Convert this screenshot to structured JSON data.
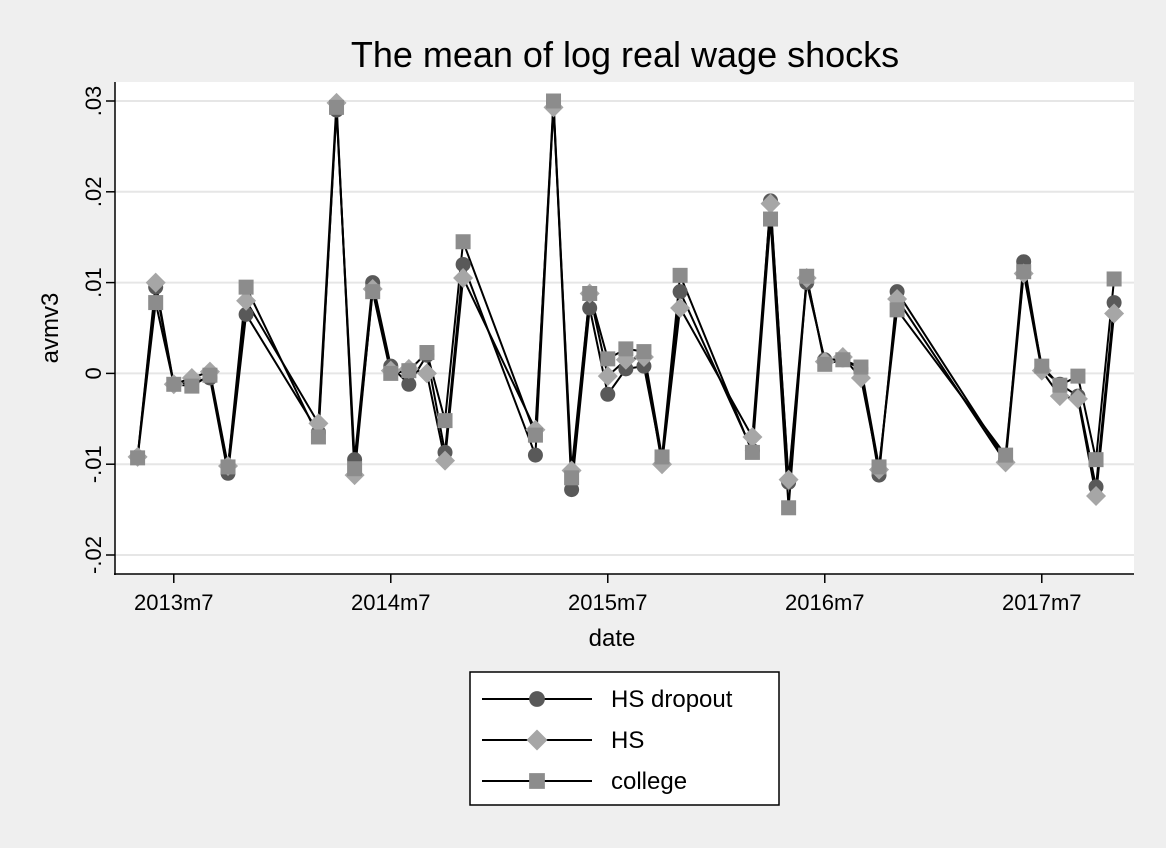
{
  "chart_data": {
    "type": "line",
    "title": "The mean of log real wage shocks",
    "xlabel": "date",
    "ylabel": "avmv3",
    "ylim": [
      -0.02,
      0.03
    ],
    "y_ticks": [
      {
        "value": -0.02,
        "label": "-.02"
      },
      {
        "value": -0.01,
        "label": "-.01"
      },
      {
        "value": 0,
        "label": "0"
      },
      {
        "value": 0.01,
        "label": ".01"
      },
      {
        "value": 0.02,
        "label": ".02"
      },
      {
        "value": 0.03,
        "label": ".03"
      }
    ],
    "xlim": [
      "2013m4",
      "2017m12"
    ],
    "x_ticks": [
      "2013m7",
      "2014m7",
      "2015m7",
      "2016m7",
      "2017m7"
    ],
    "grid": true,
    "legend_position": "bottom",
    "colors": {
      "background": "#efefef",
      "plot_background": "#ffffff",
      "line": "#000000",
      "dropout_marker": "#595959",
      "hs_marker": "#a6a6a6",
      "college_marker": "#8c8c8c",
      "gridline": "#e6e6e6"
    },
    "series": [
      {
        "name": "HS dropout",
        "marker": "circle",
        "points": [
          [
            "2013m5",
            -0.0092
          ],
          [
            "2013m6",
            0.0095
          ],
          [
            "2013m7",
            -0.0012
          ],
          [
            "2013m8",
            -0.001
          ],
          [
            "2013m9",
            -0.0005
          ],
          [
            "2013m10",
            -0.011
          ],
          [
            "2013m11",
            0.0065
          ],
          [
            "2014m3",
            -0.0065
          ],
          [
            "2014m4",
            0.029
          ],
          [
            "2014m5",
            -0.0095
          ],
          [
            "2014m6",
            0.01
          ],
          [
            "2014m7",
            0.0008
          ],
          [
            "2014m8",
            -0.0012
          ],
          [
            "2014m9",
            0.002
          ],
          [
            "2014m10",
            -0.0087
          ],
          [
            "2014m11",
            0.012
          ],
          [
            "2015m3",
            -0.009
          ],
          [
            "2015m4",
            0.0298
          ],
          [
            "2015m5",
            -0.0128
          ],
          [
            "2015m6",
            0.0072
          ],
          [
            "2015m7",
            -0.0023
          ],
          [
            "2015m8",
            0.0005
          ],
          [
            "2015m9",
            0.0008
          ],
          [
            "2015m10",
            -0.0095
          ],
          [
            "2015m11",
            0.009
          ],
          [
            "2016m3",
            -0.0085
          ],
          [
            "2016m4",
            0.019
          ],
          [
            "2016m5",
            -0.012
          ],
          [
            "2016m6",
            0.01
          ],
          [
            "2016m7",
            0.0015
          ],
          [
            "2016m8",
            0.0015
          ],
          [
            "2016m9",
            0.0005
          ],
          [
            "2016m10",
            -0.0112
          ],
          [
            "2016m11",
            0.009
          ],
          [
            "2017m5",
            -0.0095
          ],
          [
            "2017m6",
            0.0123
          ],
          [
            "2017m7",
            0.0005
          ],
          [
            "2017m8",
            -0.0012
          ],
          [
            "2017m9",
            -0.0025
          ],
          [
            "2017m10",
            -0.0125
          ],
          [
            "2017m11",
            0.0078
          ]
        ]
      },
      {
        "name": "HS",
        "marker": "diamond",
        "points": [
          [
            "2013m5",
            -0.0092
          ],
          [
            "2013m6",
            0.01
          ],
          [
            "2013m7",
            -0.0012
          ],
          [
            "2013m8",
            -0.0005
          ],
          [
            "2013m9",
            0.0002
          ],
          [
            "2013m10",
            -0.0102
          ],
          [
            "2013m11",
            0.008
          ],
          [
            "2014m3",
            -0.0055
          ],
          [
            "2014m4",
            0.0298
          ],
          [
            "2014m5",
            -0.0112
          ],
          [
            "2014m6",
            0.0093
          ],
          [
            "2014m7",
            0.0003
          ],
          [
            "2014m8",
            0.0005
          ],
          [
            "2014m9",
            0.0
          ],
          [
            "2014m10",
            -0.0096
          ],
          [
            "2014m11",
            0.0105
          ],
          [
            "2015m3",
            -0.0062
          ],
          [
            "2015m4",
            0.0293
          ],
          [
            "2015m5",
            -0.0107
          ],
          [
            "2015m6",
            0.0088
          ],
          [
            "2015m7",
            -0.0003
          ],
          [
            "2015m8",
            0.0015
          ],
          [
            "2015m9",
            0.0018
          ],
          [
            "2015m10",
            -0.01
          ],
          [
            "2015m11",
            0.0072
          ],
          [
            "2016m3",
            -0.007
          ],
          [
            "2016m4",
            0.0187
          ],
          [
            "2016m5",
            -0.0117
          ],
          [
            "2016m6",
            0.0105
          ],
          [
            "2016m7",
            0.0013
          ],
          [
            "2016m8",
            0.0018
          ],
          [
            "2016m9",
            -0.0005
          ],
          [
            "2016m10",
            -0.0106
          ],
          [
            "2016m11",
            0.0082
          ],
          [
            "2017m5",
            -0.0098
          ],
          [
            "2017m6",
            0.011
          ],
          [
            "2017m7",
            0.0003
          ],
          [
            "2017m8",
            -0.0025
          ],
          [
            "2017m9",
            -0.0028
          ],
          [
            "2017m10",
            -0.0135
          ],
          [
            "2017m11",
            0.0066
          ]
        ]
      },
      {
        "name": "college",
        "marker": "square",
        "points": [
          [
            "2013m5",
            -0.0093
          ],
          [
            "2013m6",
            0.0078
          ],
          [
            "2013m7",
            -0.0012
          ],
          [
            "2013m8",
            -0.0014
          ],
          [
            "2013m9",
            -0.0002
          ],
          [
            "2013m10",
            -0.0103
          ],
          [
            "2013m11",
            0.0095
          ],
          [
            "2014m3",
            -0.007
          ],
          [
            "2014m4",
            0.0293
          ],
          [
            "2014m5",
            -0.0105
          ],
          [
            "2014m6",
            0.009
          ],
          [
            "2014m7",
            0.0
          ],
          [
            "2014m8",
            0.0003
          ],
          [
            "2014m9",
            0.0023
          ],
          [
            "2014m10",
            -0.0052
          ],
          [
            "2014m11",
            0.0145
          ],
          [
            "2015m3",
            -0.0068
          ],
          [
            "2015m4",
            0.03
          ],
          [
            "2015m5",
            -0.0115
          ],
          [
            "2015m6",
            0.0088
          ],
          [
            "2015m7",
            0.0016
          ],
          [
            "2015m8",
            0.0027
          ],
          [
            "2015m9",
            0.0024
          ],
          [
            "2015m10",
            -0.0092
          ],
          [
            "2015m11",
            0.0108
          ],
          [
            "2016m3",
            -0.0087
          ],
          [
            "2016m4",
            0.017
          ],
          [
            "2016m5",
            -0.0148
          ],
          [
            "2016m6",
            0.0107
          ],
          [
            "2016m7",
            0.001
          ],
          [
            "2016m8",
            0.0015
          ],
          [
            "2016m9",
            0.0007
          ],
          [
            "2016m10",
            -0.0103
          ],
          [
            "2016m11",
            0.007
          ],
          [
            "2017m5",
            -0.009
          ],
          [
            "2017m6",
            0.0112
          ],
          [
            "2017m7",
            0.0008
          ],
          [
            "2017m8",
            -0.0013
          ],
          [
            "2017m9",
            -0.0003
          ],
          [
            "2017m10",
            -0.0095
          ],
          [
            "2017m11",
            0.0104
          ]
        ]
      }
    ]
  }
}
